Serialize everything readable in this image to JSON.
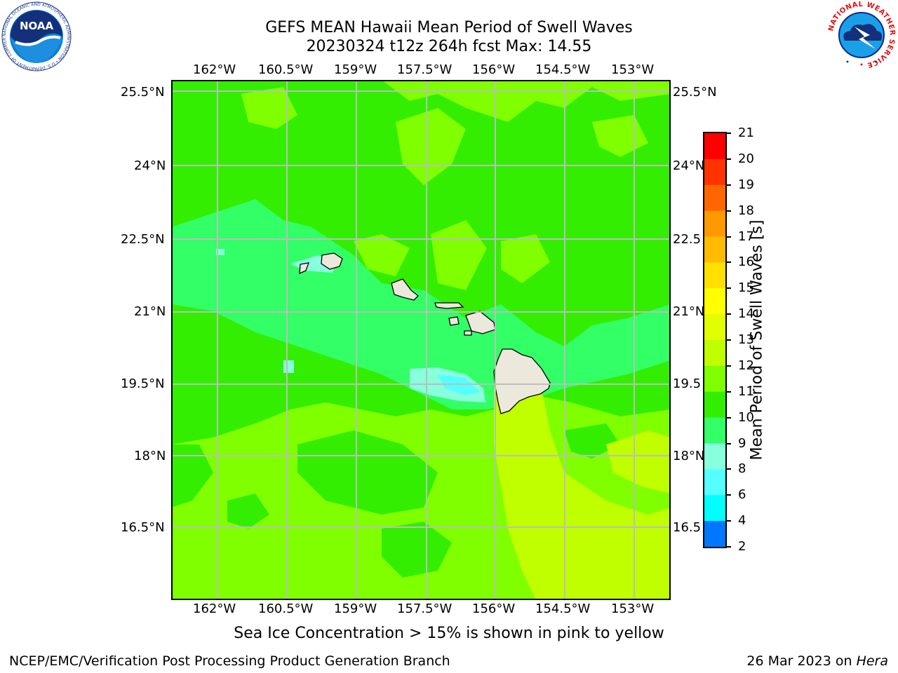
{
  "header": {
    "title_line1": "GEFS MEAN Hawaii Mean Period of Swell Waves",
    "title_line2": "20230324 t12z 264h fcst   Max: 14.55"
  },
  "logos": {
    "noaa_text": "NOAA",
    "noaa_ring_text": "NATIONAL OCEANIC AND ATMOSPHERIC ADMINISTRATION • U.S. DEPARTMENT OF COMMERCE",
    "nws_ring_text": "NATIONAL WEATHER SERVICE"
  },
  "map": {
    "lon_labels": [
      "162°W",
      "160.5°W",
      "159°W",
      "157.5°W",
      "156°W",
      "154.5°W",
      "153°W"
    ],
    "lat_labels": [
      "25.5°N",
      "24°N",
      "22.5°N",
      "21°N",
      "19.5°N",
      "18°N",
      "16.5°N"
    ],
    "lat_labels_right": [
      "25.5°N",
      "24°N",
      "22.5",
      "21°N",
      "19.5",
      "18°N",
      "16.5"
    ]
  },
  "colorbar": {
    "label": "Mean Period of Swell Waves [s]",
    "ticks": [
      "21",
      "20",
      "19",
      "18",
      "17",
      "16",
      "15",
      "14",
      "13",
      "12",
      "11",
      "10",
      "9",
      "8",
      "6",
      "4",
      "2"
    ],
    "colors": [
      "#ff0000",
      "#ff3300",
      "#ff6600",
      "#ff9900",
      "#ffbb00",
      "#ffe000",
      "#ffff00",
      "#e0ff00",
      "#bfff00",
      "#7fff00",
      "#33ee00",
      "#33ff66",
      "#88ffdd",
      "#55ffff",
      "#00ffff",
      "#0077ff",
      "#0000ff"
    ]
  },
  "footer": {
    "note": "Sea Ice Concentration > 15% is shown in pink to yellow",
    "left": "NCEP/EMC/Verification Post Processing Product Generation Branch",
    "right_date": "26 Mar 2023 on ",
    "right_host": "Hera"
  }
}
